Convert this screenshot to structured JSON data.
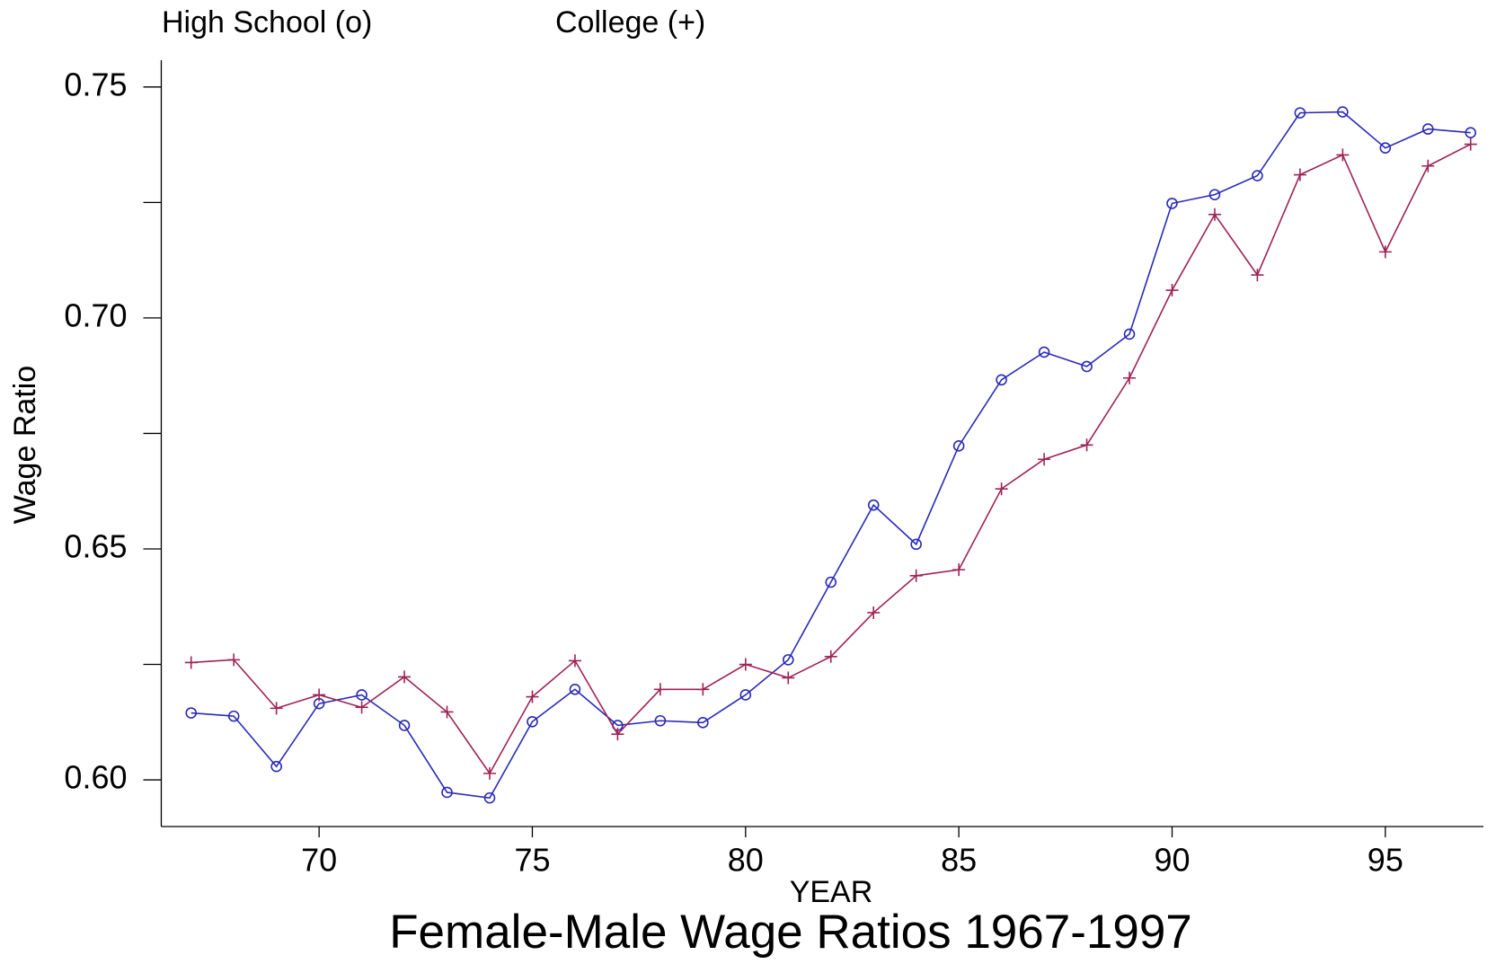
{
  "chart_data": {
    "type": "line",
    "title": "Female-Male Wage Ratios 1967-1997",
    "x_label": "YEAR",
    "y_label": "Wage Ratio",
    "x": [
      67,
      68,
      69,
      70,
      71,
      72,
      73,
      74,
      75,
      76,
      77,
      78,
      79,
      80,
      81,
      82,
      83,
      84,
      85,
      86,
      87,
      88,
      89,
      90,
      91,
      92,
      93,
      94,
      95,
      96,
      97
    ],
    "series": [
      {
        "name": "High School (o)",
        "color": "#2a2ab8",
        "marker": "o",
        "values": [
          0.6145,
          0.6138,
          0.6029,
          0.6165,
          0.6184,
          0.6118,
          0.5973,
          0.5961,
          0.6126,
          0.6196,
          0.6118,
          0.6128,
          0.6124,
          0.6184,
          0.626,
          0.6428,
          0.6595,
          0.651,
          0.6723,
          0.6866,
          0.6926,
          0.6895,
          0.6965,
          0.7248,
          0.7267,
          0.7308,
          0.7444,
          0.7446,
          0.7368,
          0.7409,
          0.7401
        ]
      },
      {
        "name": "College (+)",
        "color": "#9e2356",
        "marker": "+",
        "values": [
          0.6254,
          0.626,
          0.6155,
          0.6184,
          0.6157,
          0.6223,
          0.6147,
          0.6014,
          0.618,
          0.6258,
          0.6099,
          0.6196,
          0.6196,
          0.625,
          0.6221,
          0.6267,
          0.6362,
          0.6442,
          0.6455,
          0.663,
          0.6694,
          0.6725,
          0.687,
          0.706,
          0.7224,
          0.7093,
          0.731,
          0.7353,
          0.7143,
          0.7329,
          0.7376
        ]
      }
    ],
    "xlim": [
      66.3,
      97.3
    ],
    "ylim": [
      0.5899,
      0.7558
    ],
    "xticks": [
      70,
      75,
      80,
      85,
      90,
      95
    ],
    "yticks": [
      {
        "value": 0.6,
        "label": "0.60"
      },
      {
        "value": 0.65,
        "label": "0.65"
      },
      {
        "value": 0.7,
        "label": "0.70"
      },
      {
        "value": 0.75,
        "label": "0.75"
      }
    ],
    "yticks_minor": [
      0.625,
      0.675,
      0.725
    ],
    "grid": false
  }
}
